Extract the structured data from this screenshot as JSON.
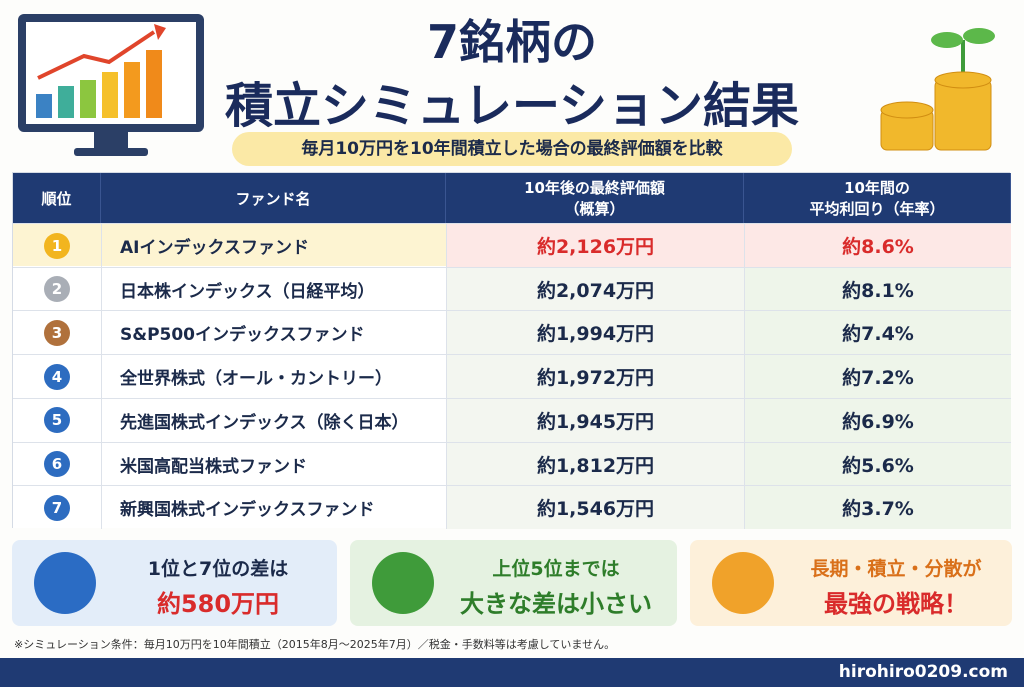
{
  "header": {
    "title_line1": "7銘柄の",
    "title_line2": "積立シミュレーション結果",
    "subtitle": "毎月10万円を10年間積立した場合の最終評価額を比較"
  },
  "table": {
    "columns": [
      [
        "順位"
      ],
      [
        "ファンド名"
      ],
      [
        "10年後の最終評価額",
        "（概算）"
      ],
      [
        "10年間の",
        "平均利回り（年率）"
      ]
    ],
    "rows": [
      [
        "1",
        "AIインデックスファンド",
        "約2,126万円",
        "約8.6%"
      ],
      [
        "2",
        "日本株インデックス（日経平均）",
        "約2,074万円",
        "約8.1%"
      ],
      [
        "3",
        "S&P500インデックスファンド",
        "約1,994万円",
        "約7.4%"
      ],
      [
        "4",
        "全世界株式（オール・カントリー）",
        "約1,972万円",
        "約7.2%"
      ],
      [
        "5",
        "先進国株式インデックス（除く日本）",
        "約1,945万円",
        "約6.9%"
      ],
      [
        "6",
        "米国高配当株式ファンド",
        "約1,812万円",
        "約5.6%"
      ],
      [
        "7",
        "新興国株式インデックスファンド",
        "約1,546万円",
        "約3.7%"
      ]
    ]
  },
  "highlights": [
    {
      "line1": "1位と7位の差は",
      "line2": "約580万円"
    },
    {
      "line1": "上位5位までは",
      "line2": "大きな差は小さい"
    },
    {
      "line1": "長期・積立・分散が",
      "line2": "最強の戦略！"
    }
  ],
  "footnote": "※シミュレーション条件：毎月10万円を10年間積立（2015年8月～2025年7月）／税金・手数料等は考慮していません。",
  "footer": "hirohiro0209.com"
}
